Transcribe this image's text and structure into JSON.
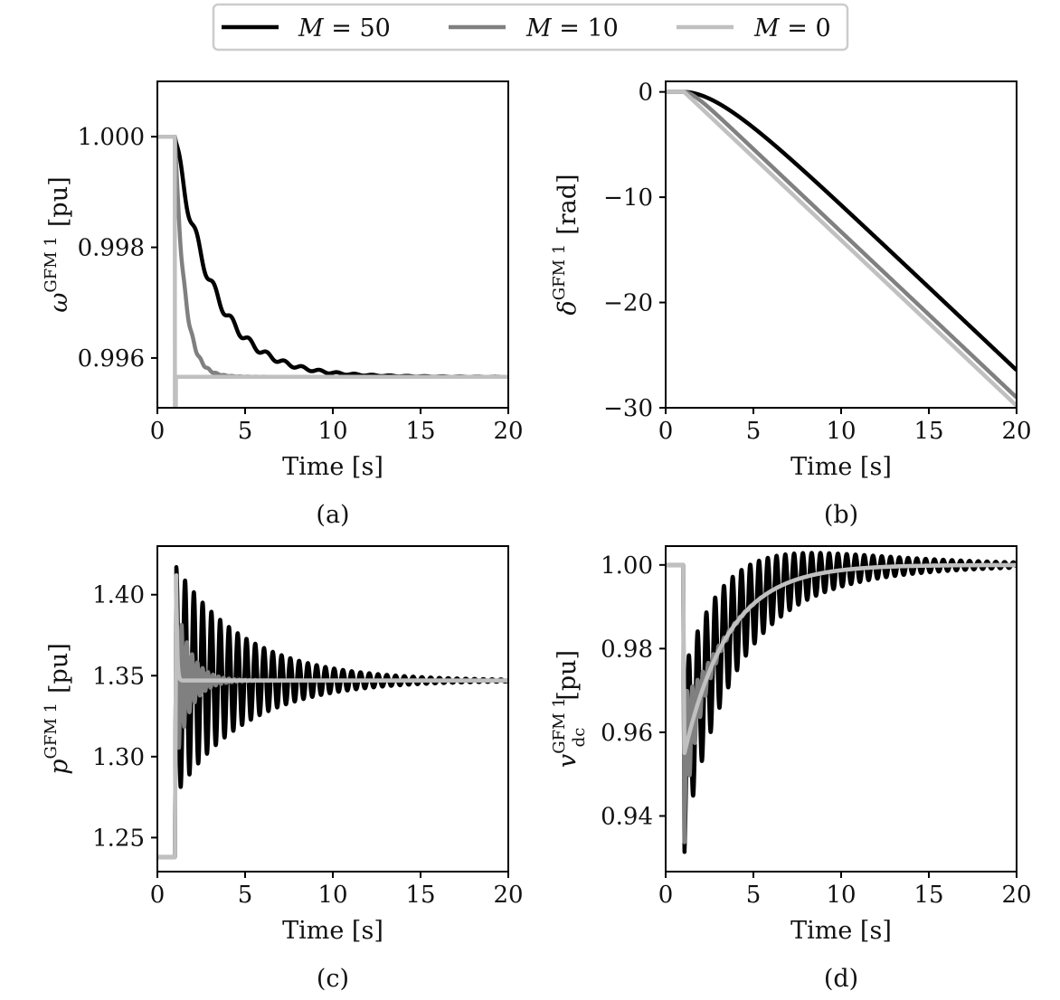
{
  "legend": {
    "entries": [
      {
        "label_prefix": "M",
        "label_value": "= 50",
        "color": "#000000"
      },
      {
        "label_prefix": "M",
        "label_value": "= 10",
        "color": "#808080"
      },
      {
        "label_prefix": "M",
        "label_value": "= 0",
        "color": "#c0c0c0"
      }
    ]
  },
  "chart_data": [
    {
      "id": "a",
      "type": "line",
      "caption": "(a)",
      "xlabel": "Time [s]",
      "ylabel_base": "ω",
      "ylabel_sup": "GFM 1",
      "ylabel_sub": "",
      "ylabel_unit": "[pu]",
      "xlim": [
        0,
        20
      ],
      "ylim": [
        0.9951,
        1.001
      ],
      "xticks": [
        0,
        5,
        10,
        15,
        20
      ],
      "xtick_labels": [
        "0",
        "5",
        "10",
        "15",
        "20"
      ],
      "yticks": [
        1.0,
        0.998,
        0.996
      ],
      "ytick_labels": [
        "1.000",
        "0.998",
        "0.996"
      ],
      "series": [
        {
          "name": "M = 50",
          "color": "#000000",
          "model": "exp",
          "t0": 1.0,
          "pre": 1.0,
          "final": 0.99566,
          "step": 0,
          "tau": 2.2,
          "osc_amp": 0.00018,
          "osc_period": 1.0,
          "osc_tau": 4.0
        },
        {
          "name": "M = 10",
          "color": "#808080",
          "model": "exp",
          "t0": 1.0,
          "pre": 1.0,
          "final": 0.99566,
          "step": 0,
          "tau": 0.55,
          "osc_amp": 0.0001,
          "osc_period": 0.45,
          "osc_tau": 1.0
        },
        {
          "name": "M = 0",
          "color": "#c0c0c0",
          "model": "jump",
          "t0": 1.0,
          "pre": 1.0,
          "final": 0.99566,
          "dip": 0.9951
        }
      ]
    },
    {
      "id": "b",
      "type": "line",
      "caption": "(b)",
      "xlabel": "Time [s]",
      "ylabel_base": "δ",
      "ylabel_sup": "GFM 1",
      "ylabel_sub": "",
      "ylabel_unit": "[rad]",
      "xlim": [
        0,
        20
      ],
      "ylim": [
        -30,
        1
      ],
      "xticks": [
        0,
        5,
        10,
        15,
        20
      ],
      "xtick_labels": [
        "0",
        "5",
        "10",
        "15",
        "20"
      ],
      "yticks": [
        0,
        -10,
        -20,
        -30
      ],
      "ytick_labels": [
        "0",
        "−10",
        "−20",
        "−30"
      ],
      "series": [
        {
          "name": "M = 50",
          "color": "#000000",
          "model": "ramp",
          "t0": 1.0,
          "slope": -1.573,
          "tau": 2.2
        },
        {
          "name": "M = 10",
          "color": "#808080",
          "model": "ramp",
          "t0": 1.0,
          "slope": -1.573,
          "tau": 0.55
        },
        {
          "name": "M = 0",
          "color": "#c0c0c0",
          "model": "ramp",
          "t0": 1.0,
          "slope": -1.573,
          "tau": 0.05
        }
      ]
    },
    {
      "id": "c",
      "type": "line",
      "caption": "(c)",
      "xlabel": "Time [s]",
      "ylabel_base": "p",
      "ylabel_sup": "GFM 1",
      "ylabel_sub": "",
      "ylabel_unit": "[pu]",
      "xlim": [
        0,
        20
      ],
      "ylim": [
        1.229,
        1.43
      ],
      "xticks": [
        0,
        5,
        10,
        15,
        20
      ],
      "xtick_labels": [
        "0",
        "5",
        "10",
        "15",
        "20"
      ],
      "yticks": [
        1.4,
        1.35,
        1.3,
        1.25
      ],
      "ytick_labels": [
        "1.40",
        "1.35",
        "1.30",
        "1.25"
      ],
      "series": [
        {
          "name": "M = 50",
          "color": "#000000",
          "model": "osc",
          "t0": 1.0,
          "pre": 1.238,
          "final": 1.347,
          "osc_amp": 0.07,
          "osc_period": 0.5,
          "osc_tau": 4.0,
          "spike": 1.418
        },
        {
          "name": "M = 10",
          "color": "#808080",
          "model": "osc",
          "t0": 1.0,
          "pre": 1.238,
          "final": 1.347,
          "osc_amp": 0.05,
          "osc_period": 0.3,
          "osc_tau": 0.8,
          "spike": 1.415
        },
        {
          "name": "M = 0",
          "color": "#c0c0c0",
          "model": "osc",
          "t0": 1.0,
          "pre": 1.238,
          "final": 1.347,
          "osc_amp": 0.0,
          "osc_period": 0.3,
          "osc_tau": 0.1,
          "spike": 1.412
        }
      ]
    },
    {
      "id": "d",
      "type": "line",
      "caption": "(d)",
      "xlabel": "Time [s]",
      "ylabel_base": "v",
      "ylabel_sup": "GFM 1",
      "ylabel_sub": "dc",
      "ylabel_unit": "[pu]",
      "xlim": [
        0,
        20
      ],
      "ylim": [
        0.9267,
        1.0045
      ],
      "xticks": [
        0,
        5,
        10,
        15,
        20
      ],
      "xtick_labels": [
        "0",
        "5",
        "10",
        "15",
        "20"
      ],
      "yticks": [
        1.0,
        0.98,
        0.96,
        0.94
      ],
      "ytick_labels": [
        "1.00",
        "0.98",
        "0.96",
        "0.94"
      ],
      "series": [
        {
          "name": "M = 50",
          "color": "#000000",
          "model": "dc",
          "t0": 1.0,
          "pre": 1.0,
          "final": 1.0,
          "dip": 0.931,
          "start": 0.955,
          "tau": 2.5,
          "osc_amp": 0.02,
          "osc_period": 0.5,
          "osc_tau": 5.5
        },
        {
          "name": "M = 10",
          "color": "#808080",
          "model": "dc",
          "t0": 1.0,
          "pre": 1.0,
          "final": 1.0,
          "dip": 0.933,
          "start": 0.955,
          "tau": 2.5,
          "osc_amp": 0.015,
          "osc_period": 0.3,
          "osc_tau": 0.8
        },
        {
          "name": "M = 0",
          "color": "#c0c0c0",
          "model": "dc",
          "t0": 1.0,
          "pre": 1.0,
          "final": 1.0,
          "dip": 0.955,
          "start": 0.955,
          "tau": 2.5,
          "osc_amp": 0.0,
          "osc_period": 0.3,
          "osc_tau": 0.1
        }
      ]
    }
  ]
}
